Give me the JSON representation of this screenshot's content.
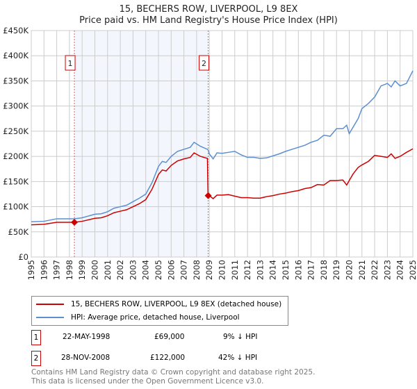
{
  "chart_data": {
    "type": "line",
    "title": "15, BECHERS ROW, LIVERPOOL, L9 8EX",
    "subtitle": "Price paid vs. HM Land Registry's House Price Index (HPI)",
    "xlim": [
      1995,
      2025
    ],
    "ylim": [
      0,
      450000
    ],
    "y_ticks": [
      {
        "v": 0,
        "label": "£0"
      },
      {
        "v": 50000,
        "label": "£50K"
      },
      {
        "v": 100000,
        "label": "£100K"
      },
      {
        "v": 150000,
        "label": "£150K"
      },
      {
        "v": 200000,
        "label": "£200K"
      },
      {
        "v": 250000,
        "label": "£250K"
      },
      {
        "v": 300000,
        "label": "£300K"
      },
      {
        "v": 350000,
        "label": "£350K"
      },
      {
        "v": 400000,
        "label": "£400K"
      },
      {
        "v": 450000,
        "label": "£450K"
      }
    ],
    "x_ticks": [
      "1995",
      "1996",
      "1997",
      "1998",
      "1999",
      "2000",
      "2001",
      "2002",
      "2003",
      "2004",
      "2005",
      "2006",
      "2007",
      "2008",
      "2009",
      "2010",
      "2011",
      "2012",
      "2013",
      "2014",
      "2015",
      "2016",
      "2017",
      "2018",
      "2019",
      "2020",
      "2021",
      "2022",
      "2023",
      "2024",
      "2025"
    ],
    "grid": true,
    "x": [
      1995,
      1996,
      1997,
      1998,
      1998.4,
      1999,
      2000,
      2000.5,
      2001,
      2001.5,
      2002,
      2002.5,
      2003,
      2003.5,
      2004,
      2004.5,
      2005,
      2005.3,
      2005.6,
      2006,
      2006.5,
      2007,
      2007.5,
      2007.8,
      2008.3,
      2008.85,
      2008.9,
      2009,
      2009.3,
      2009.6,
      2010,
      2010.5,
      2011,
      2011.5,
      2012,
      2012.5,
      2013,
      2013.5,
      2014,
      2014.5,
      2015,
      2015.5,
      2016,
      2016.5,
      2017,
      2017.5,
      2018,
      2018.5,
      2019,
      2019.5,
      2019.8,
      2020,
      2020.3,
      2020.7,
      2021,
      2021.5,
      2022,
      2022.5,
      2023,
      2023.3,
      2023.6,
      2024,
      2024.5,
      2025
    ],
    "series": [
      {
        "name": "15, BECHERS ROW, LIVERPOOL, L9 8EX (detached house)",
        "color": "#cc0000",
        "values": [
          64,
          65,
          69,
          69,
          69,
          71,
          77,
          78,
          82,
          88,
          91,
          94,
          100,
          106,
          114,
          135,
          164,
          173,
          171,
          182,
          191,
          195,
          198,
          207,
          200,
          196,
          122,
          122,
          116,
          123,
          123,
          124,
          121,
          118,
          118,
          117,
          117,
          120,
          122,
          125,
          127,
          130,
          132,
          136,
          138,
          144,
          143,
          152,
          152,
          153,
          143,
          152,
          165,
          178,
          183,
          190,
          202,
          200,
          198,
          205,
          196,
          200,
          208,
          215
        ]
      },
      {
        "name": "HPI: Average price, detached house, Liverpool",
        "color": "#5b8fd0",
        "values": [
          70,
          71,
          76,
          76,
          76,
          78,
          85,
          86,
          90,
          97,
          100,
          103,
          110,
          117,
          125,
          148,
          180,
          190,
          188,
          200,
          210,
          214,
          218,
          228,
          220,
          214,
          213,
          205,
          195,
          207,
          206,
          208,
          210,
          203,
          198,
          198,
          196,
          197,
          201,
          205,
          210,
          214,
          218,
          222,
          228,
          232,
          242,
          240,
          255,
          255,
          262,
          245,
          258,
          275,
          295,
          305,
          318,
          340,
          345,
          338,
          350,
          340,
          345,
          370
        ]
      }
    ],
    "value_unit": "thousands GBP",
    "sales": [
      {
        "id": "1",
        "x": 1998.39,
        "value": 69000,
        "date": "22-MAY-1998",
        "price": "£69,000",
        "hpi": "9% ↓ HPI"
      },
      {
        "id": "2",
        "x": 2008.91,
        "value": 122000,
        "date": "28-NOV-2008",
        "price": "£122,000",
        "hpi": "42% ↓ HPI"
      }
    ],
    "legend_position": "below"
  },
  "footer": {
    "line1": "Contains HM Land Registry data © Crown copyright and database right 2025.",
    "line2": "This data is licensed under the Open Government Licence v3.0."
  }
}
